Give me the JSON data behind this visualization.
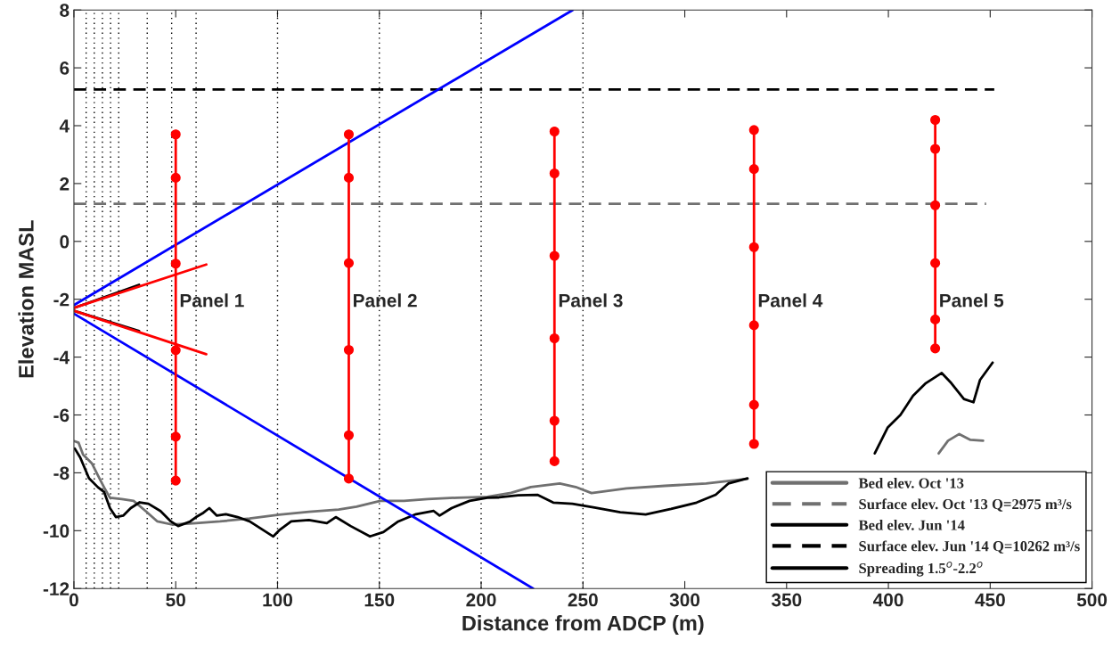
{
  "chart_data": {
    "type": "line",
    "xlabel": "Distance from ADCP (m)",
    "ylabel": "Elevation MASL",
    "xlim": [
      0,
      500
    ],
    "ylim": [
      -12,
      8
    ],
    "xticks": [
      0,
      50,
      100,
      150,
      200,
      250,
      300,
      350,
      400,
      450,
      500
    ],
    "yticks": [
      -12,
      -10,
      -8,
      -6,
      -4,
      -2,
      0,
      2,
      4,
      6,
      8
    ],
    "grid": false,
    "legend": "bottom right",
    "ref_lines": [
      {
        "axis": "x",
        "value": 6,
        "color": "#000000",
        "line_style": "dotted"
      },
      {
        "axis": "x",
        "value": 10,
        "color": "#000000",
        "line_style": "dotted"
      },
      {
        "axis": "x",
        "value": 14,
        "color": "#000000",
        "line_style": "dotted"
      },
      {
        "axis": "x",
        "value": 18,
        "color": "#000000",
        "line_style": "dotted"
      },
      {
        "axis": "x",
        "value": 22,
        "color": "#000000",
        "line_style": "dotted"
      },
      {
        "axis": "x",
        "value": 36,
        "color": "#000000",
        "line_style": "dotted"
      },
      {
        "axis": "x",
        "value": 48,
        "color": "#000000",
        "line_style": "dotted"
      },
      {
        "axis": "x",
        "value": 60,
        "color": "#000000",
        "line_style": "dotted"
      },
      {
        "axis": "x",
        "value": 100,
        "color": "#000000",
        "line_style": "dotted"
      },
      {
        "axis": "x",
        "value": 150,
        "color": "#000000",
        "line_style": "dotted"
      },
      {
        "axis": "x",
        "value": 200,
        "color": "#000000",
        "line_style": "dotted"
      },
      {
        "axis": "x",
        "value": 250,
        "color": "#000000",
        "line_style": "dotted"
      }
    ],
    "series": [
      {
        "name": "Bed elev. Oct '13",
        "color": "#707070",
        "line_style": "solid",
        "x": [
          0.4,
          2.3,
          4.5,
          8.9,
          11.8,
          14.8,
          17.7,
          23.5,
          29.3,
          35.2,
          41,
          48.3,
          60,
          71.7,
          86.3,
          100.8,
          115.4,
          130,
          138.8,
          150.5,
          162.1,
          173.8,
          188.4,
          203,
          214.7,
          224.4,
          238.6,
          246.4,
          254.2,
          271.4,
          290.2,
          310.5,
          330.8,
          380,
          424.7,
          429.3,
          434.8,
          440.3,
          446.5
        ],
        "values": [
          -6.91,
          -6.96,
          -7.37,
          -7.68,
          -8.09,
          -8.5,
          -8.86,
          -8.91,
          -8.97,
          -9.32,
          -9.68,
          -9.79,
          -9.74,
          -9.68,
          -9.58,
          -9.45,
          -9.35,
          -9.27,
          -9.17,
          -8.97,
          -8.97,
          -8.91,
          -8.86,
          -8.83,
          -8.69,
          -8.49,
          -8.37,
          -8.49,
          -8.7,
          -8.54,
          -8.45,
          -8.37,
          -8.21,
          null,
          -7.33,
          -6.89,
          -6.66,
          -6.86,
          -6.89
        ]
      },
      {
        "name": "Surface elev. Oct '13 Q=2975 m³/s",
        "color": "#707070",
        "line_style": "dashed",
        "x": [
          0,
          448
        ],
        "values": [
          1.3,
          1.3
        ]
      },
      {
        "name": "Bed elev. Jun '14",
        "color": "#000000",
        "line_style": "solid",
        "x": [
          0.4,
          3.1,
          7.4,
          11.8,
          14.8,
          17.7,
          20.6,
          24.2,
          27.9,
          32.3,
          36.6,
          42.5,
          47.6,
          51.2,
          57.1,
          60,
          63.6,
          66.5,
          70.2,
          74.6,
          80.4,
          86.3,
          92.1,
          97.9,
          100.8,
          106.7,
          115.4,
          124.2,
          128.6,
          135.9,
          145.4,
          152,
          159.3,
          168,
          176.7,
          179.6,
          185.5,
          194.3,
          203,
          208.8,
          218.2,
          227.6,
          235.4,
          244.8,
          255.7,
          268.3,
          280.8,
          293.3,
          305.8,
          315.2,
          321.4,
          330.8,
          360,
          393.3,
          399.6,
          405.9,
          412.1,
          418.4,
          426.2,
          430.9,
          437.1,
          441.8,
          445,
          451.2
        ],
        "values": [
          -7.16,
          -7.47,
          -8.19,
          -8.5,
          -8.66,
          -9.22,
          -9.53,
          -9.48,
          -9.22,
          -9.02,
          -9.07,
          -9.32,
          -9.68,
          -9.84,
          -9.68,
          -9.53,
          -9.38,
          -9.22,
          -9.48,
          -9.43,
          -9.53,
          -9.68,
          -9.94,
          -10.2,
          -9.99,
          -9.68,
          -9.63,
          -9.74,
          -9.53,
          -9.84,
          -10.2,
          -10.05,
          -9.68,
          -9.43,
          -9.32,
          -9.48,
          -9.22,
          -8.97,
          -8.86,
          -8.85,
          -8.78,
          -8.76,
          -9.03,
          -9.07,
          -9.2,
          -9.36,
          -9.44,
          -9.25,
          -9.03,
          -8.76,
          -8.37,
          -8.19,
          null,
          -7.33,
          -6.44,
          -6,
          -5.34,
          -4.9,
          -4.55,
          -4.9,
          -5.45,
          -5.56,
          -4.79,
          -4.19
        ]
      },
      {
        "name": "Surface elev. Jun '14 Q=10262 m³/s",
        "color": "#000000",
        "line_style": "dashed",
        "x": [
          0,
          452
        ],
        "values": [
          5.25,
          5.25
        ]
      },
      {
        "name": "Spreading 1.5$^{o}$-2.2$^{o}$",
        "color": "#000000",
        "line_style": "solid",
        "x": [
          0,
          32
        ],
        "values": [
          -2.3,
          -1.5
        ]
      },
      {
        "color": "#000000",
        "line_style": "solid",
        "x": [
          0,
          32
        ],
        "values": [
          -2.4,
          -3.1
        ]
      },
      {
        "color": "#ff0000",
        "line_style": "solid",
        "x": [
          0,
          65
        ],
        "values": [
          -2.3,
          -0.8
        ]
      },
      {
        "color": "#ff0000",
        "line_style": "solid",
        "x": [
          0,
          65
        ],
        "values": [
          -2.4,
          -3.9
        ]
      },
      {
        "color": "#0000ff",
        "line_style": "solid",
        "x": [
          0,
          245
        ],
        "values": [
          -2.2,
          8
        ]
      },
      {
        "color": "#0000ff",
        "line_style": "solid",
        "x": [
          0,
          225.5
        ],
        "values": [
          -2.5,
          -12
        ]
      },
      {
        "color": "#ff0000",
        "line_style": "solid",
        "marker": "circle",
        "x": [
          50,
          50,
          50,
          50,
          50,
          50
        ],
        "values": [
          3.7,
          2.2,
          -0.77,
          -3.76,
          -6.75,
          -8.27
        ]
      },
      {
        "color": "#ff0000",
        "line_style": "solid",
        "marker": "circle",
        "x": [
          135,
          135,
          135,
          135,
          135,
          135
        ],
        "values": [
          3.7,
          2.2,
          -0.75,
          -3.75,
          -6.7,
          -8.2
        ]
      },
      {
        "color": "#ff0000",
        "line_style": "solid",
        "marker": "circle",
        "x": [
          236,
          236,
          236,
          236,
          236,
          236
        ],
        "values": [
          3.8,
          2.35,
          -0.5,
          -3.35,
          -6.2,
          -7.6
        ]
      },
      {
        "color": "#ff0000",
        "line_style": "solid",
        "marker": "circle",
        "x": [
          334,
          334,
          334,
          334,
          334,
          334
        ],
        "values": [
          3.85,
          2.5,
          -0.2,
          -2.9,
          -5.65,
          -7
        ]
      },
      {
        "color": "#ff0000",
        "line_style": "solid",
        "marker": "circle",
        "x": [
          423,
          423,
          423,
          423,
          423,
          423
        ],
        "values": [
          4.2,
          3.2,
          1.25,
          -0.75,
          -2.7,
          -3.7
        ]
      }
    ],
    "annotations": [
      {
        "text": "Panel 1",
        "x": 50,
        "y": -2.1
      },
      {
        "text": "Panel 2",
        "x": 135,
        "y": -2.1
      },
      {
        "text": "Panel 3",
        "x": 236,
        "y": -2.1
      },
      {
        "text": "Panel 4",
        "x": 334,
        "y": -2.1
      },
      {
        "text": "Panel 5",
        "x": 423,
        "y": -2.1
      }
    ]
  }
}
